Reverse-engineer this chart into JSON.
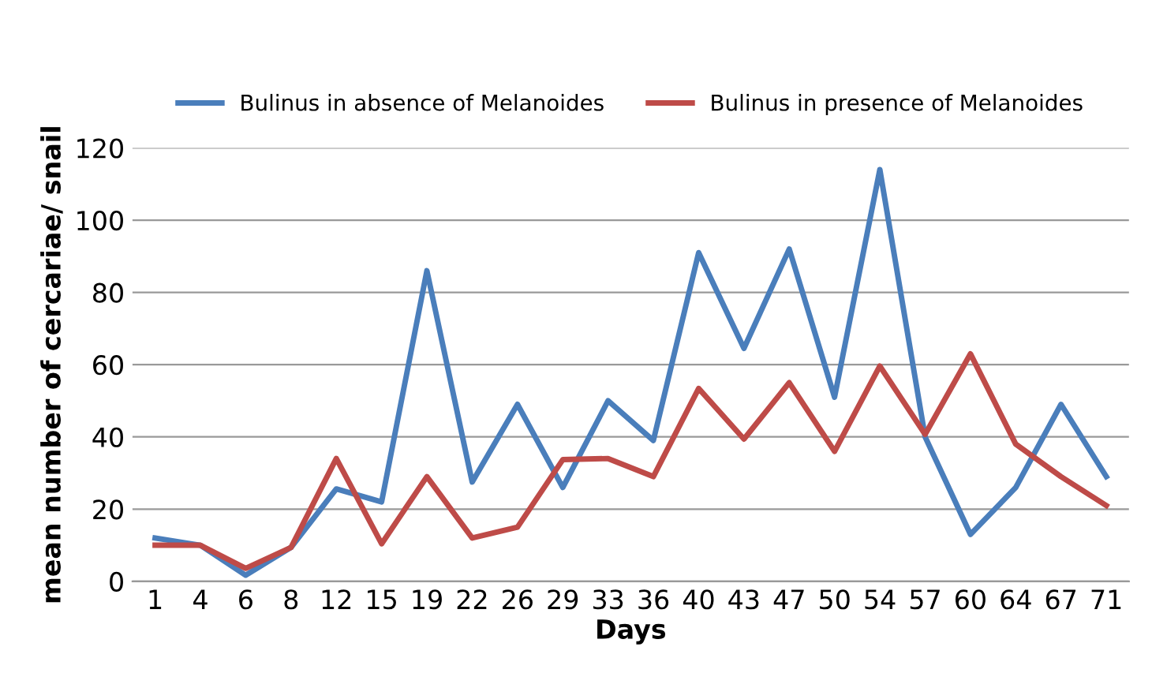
{
  "chart_data": {
    "type": "line",
    "xlabel": "Days",
    "ylabel": "mean number of cercariae/ snail",
    "categories": [
      "1",
      "4",
      "6",
      "8",
      "12",
      "15",
      "19",
      "22",
      "26",
      "29",
      "33",
      "36",
      "40",
      "43",
      "47",
      "50",
      "54",
      "57",
      "60",
      "64",
      "67",
      "71"
    ],
    "series": [
      {
        "name": "Bulinus in absence of Melanoides",
        "color": "#4a7ebb",
        "values": [
          12,
          10,
          1.7,
          9.4,
          25.6,
          22,
          86,
          27.5,
          49,
          26,
          50,
          39,
          91,
          64.5,
          92,
          51,
          114,
          40,
          13,
          26,
          49,
          29
        ]
      },
      {
        "name": "Bulinus in presence of Melanoides",
        "color": "#be4b48",
        "values": [
          10,
          10,
          3.6,
          9.4,
          34,
          10.4,
          29,
          12,
          15,
          33.7,
          34,
          29,
          53.4,
          39.4,
          55,
          36,
          59.6,
          40.7,
          63,
          38,
          29,
          21
        ]
      }
    ],
    "ylim": [
      0,
      120
    ],
    "yticks": [
      0,
      20,
      40,
      60,
      80,
      100,
      120
    ],
    "grid": "y",
    "legend": "top",
    "marker": "none",
    "line_style": "solid"
  }
}
